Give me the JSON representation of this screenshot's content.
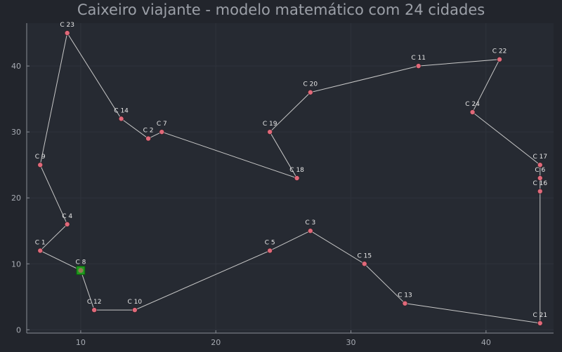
{
  "chart_data": {
    "type": "scatter",
    "title": "Caixeiro viajante - modelo matemático com 24 cidades",
    "xlabel": "",
    "ylabel": "",
    "xlim": [
      6,
      45
    ],
    "ylim": [
      -0.5,
      46.5
    ],
    "x_ticks": [
      10,
      20,
      30,
      40
    ],
    "y_ticks": [
      0,
      10,
      20,
      30,
      40
    ],
    "grid": true,
    "colors": {
      "background": "#22252c",
      "plot_area": "#262a32",
      "grid": "#2f333c",
      "axis": "#8a8e96",
      "route_line": "#c8c8c8",
      "point": "#e0697a",
      "start_marker": "#1e9a1e"
    },
    "points": [
      {
        "label": "C 1",
        "x": 7,
        "y": 12
      },
      {
        "label": "C 2",
        "x": 15,
        "y": 29
      },
      {
        "label": "C 3",
        "x": 27,
        "y": 15
      },
      {
        "label": "C 4",
        "x": 9,
        "y": 16
      },
      {
        "label": "C 5",
        "x": 24,
        "y": 12
      },
      {
        "label": "C 6",
        "x": 44,
        "y": 23
      },
      {
        "label": "C 7",
        "x": 16,
        "y": 30
      },
      {
        "label": "C 8",
        "x": 10,
        "y": 9
      },
      {
        "label": "C 9",
        "x": 7,
        "y": 25
      },
      {
        "label": "C 10",
        "x": 14,
        "y": 3
      },
      {
        "label": "C 11",
        "x": 35,
        "y": 40
      },
      {
        "label": "C 12",
        "x": 11,
        "y": 3
      },
      {
        "label": "C 13",
        "x": 34,
        "y": 4
      },
      {
        "label": "C 14",
        "x": 13,
        "y": 32
      },
      {
        "label": "C 15",
        "x": 31,
        "y": 10
      },
      {
        "label": "C 16",
        "x": 44,
        "y": 21
      },
      {
        "label": "C 17",
        "x": 44,
        "y": 25
      },
      {
        "label": "C 18",
        "x": 26,
        "y": 23
      },
      {
        "label": "C 19",
        "x": 24,
        "y": 30
      },
      {
        "label": "C 20",
        "x": 27,
        "y": 36
      },
      {
        "label": "C 21",
        "x": 44,
        "y": 1
      },
      {
        "label": "C 22",
        "x": 41,
        "y": 41
      },
      {
        "label": "C 23",
        "x": 9,
        "y": 45
      },
      {
        "label": "C 24",
        "x": 39,
        "y": 33
      }
    ],
    "start_city": "C 8",
    "route": [
      "C 8",
      "C 12",
      "C 10",
      "C 5",
      "C 3",
      "C 15",
      "C 13",
      "C 21",
      "C 16",
      "C 6",
      "C 17",
      "C 24",
      "C 22",
      "C 11",
      "C 20",
      "C 19",
      "C 18",
      "C 7",
      "C 2",
      "C 14",
      "C 23",
      "C 9",
      "C 4",
      "C 1",
      "C 8"
    ]
  }
}
